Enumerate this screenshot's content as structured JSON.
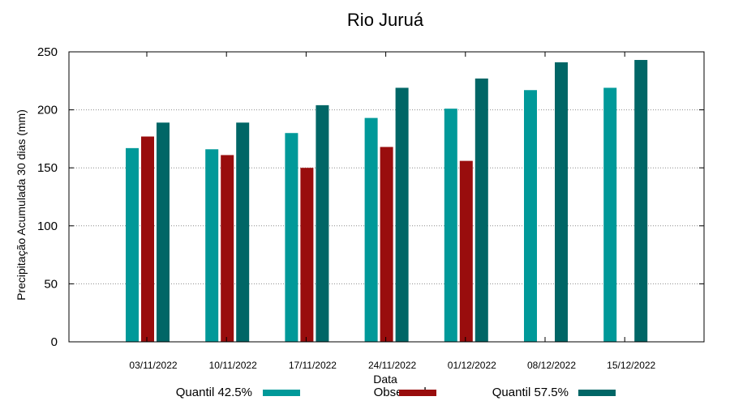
{
  "chart_data": {
    "type": "bar",
    "title": "Rio Juruá",
    "xlabel": "Data",
    "ylabel": "Precipitação Acumulada 30 dias (mm)",
    "ylim": [
      0,
      250
    ],
    "yticks": [
      0,
      50,
      100,
      150,
      200,
      250
    ],
    "grid": true,
    "legend_position": "bottom",
    "categories": [
      "03/11/2022",
      "10/11/2022",
      "17/11/2022",
      "24/11/2022",
      "01/12/2022",
      "08/12/2022",
      "15/12/2022"
    ],
    "series": [
      {
        "name": "Quantil 42.5%",
        "color": "#009999",
        "values": [
          167,
          166,
          180,
          193,
          201,
          217,
          219
        ]
      },
      {
        "name": "Observado",
        "color": "#990d0d",
        "values": [
          177,
          161,
          150,
          168,
          156,
          null,
          null
        ]
      },
      {
        "name": "Quantil 57.5%",
        "color": "#006666",
        "values": [
          189,
          189,
          204,
          219,
          227,
          241,
          243
        ]
      }
    ]
  }
}
